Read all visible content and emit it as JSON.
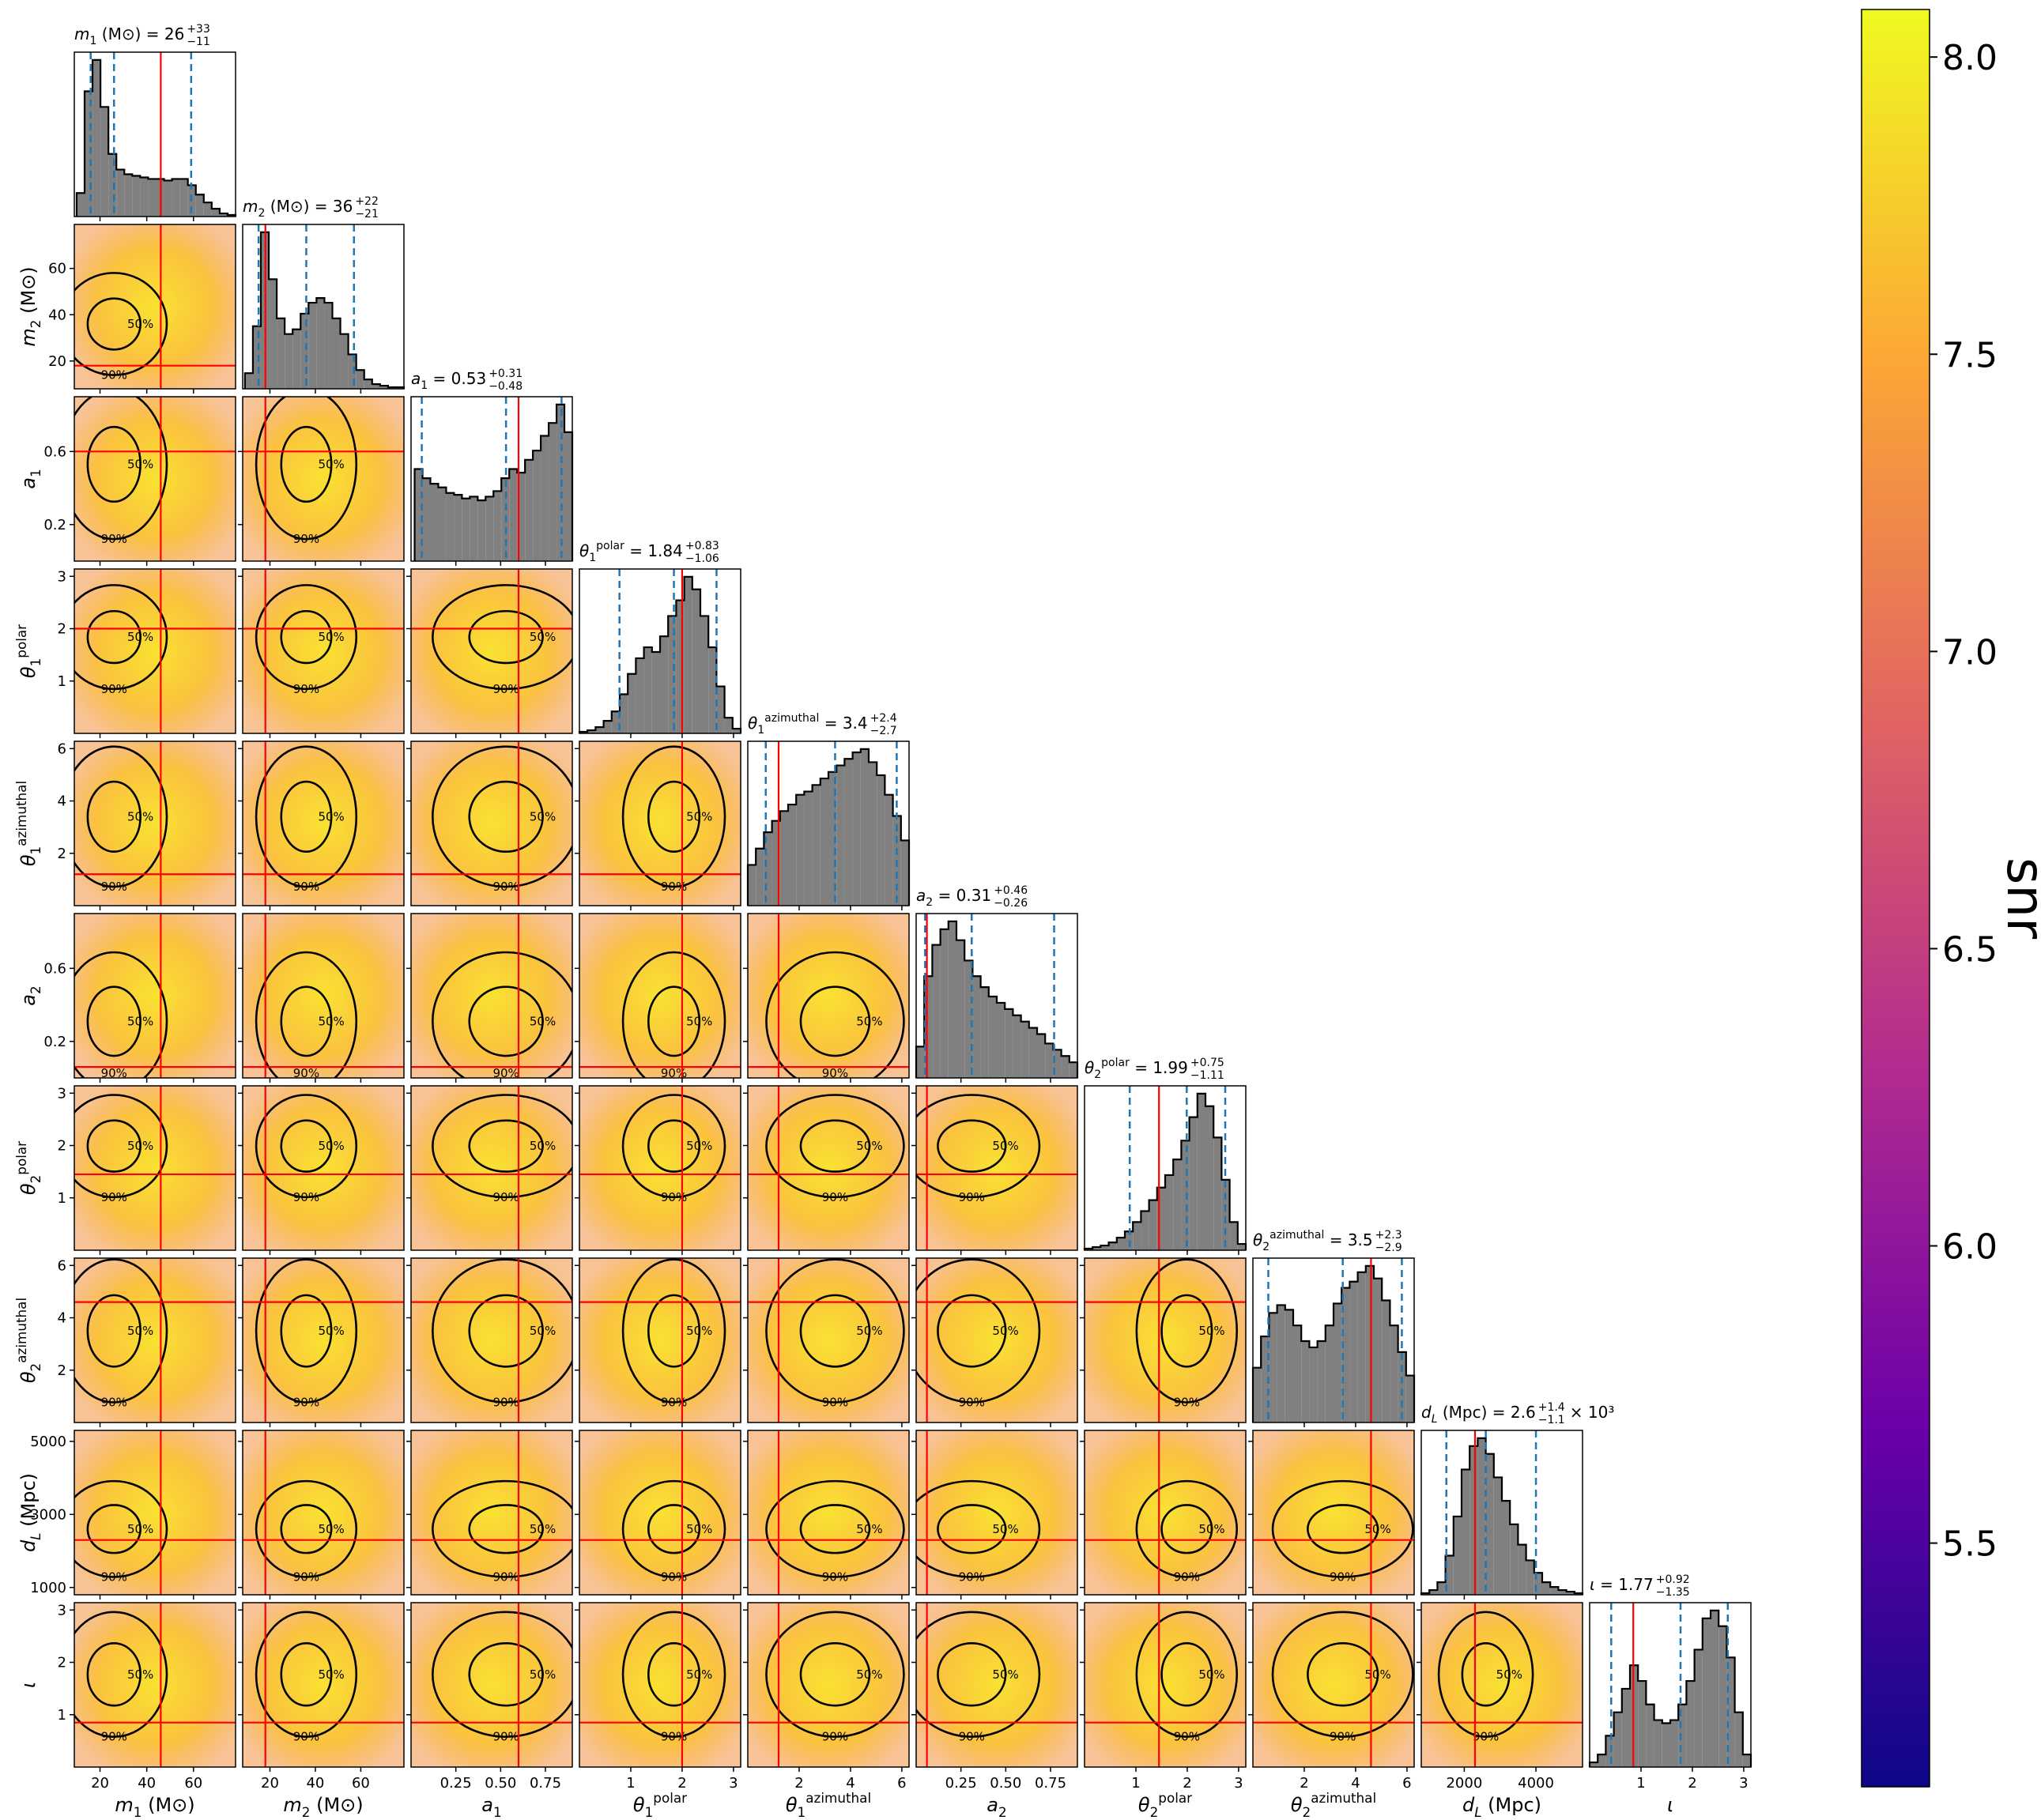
{
  "chart_data": {
    "type": "corner",
    "colors": {
      "hist": "#808080",
      "truth": "#ff0000",
      "quantile": "#1f77b4",
      "contour": "#000000"
    },
    "contour_levels": [
      "50%",
      "90%"
    ],
    "parameters": [
      {
        "label": {
          "symbol": "m",
          "sub": "1",
          "suffix": " (M⊙)"
        },
        "title": {
          "text": " = 26",
          "plus": "+33",
          "minus": "−11"
        },
        "xlim": [
          9,
          78
        ],
        "xticks": [
          20,
          40,
          60
        ],
        "yticks": [
          20,
          40,
          60
        ],
        "truth": 46,
        "quantiles": [
          16,
          26,
          59
        ],
        "bins": [
          10,
          13.4,
          16.8,
          20.2,
          23.6,
          27,
          30.4,
          33.8,
          37.2,
          40.6,
          44,
          47.4,
          50.8,
          54.2,
          57.6,
          61,
          64.4,
          67.8,
          71.2,
          74.6,
          78
        ],
        "counts": [
          15,
          80,
          100,
          70,
          40,
          30,
          27,
          26,
          25,
          24,
          24,
          23,
          24,
          24,
          20,
          14,
          9,
          5,
          2,
          1
        ]
      },
      {
        "label": {
          "symbol": "m",
          "sub": "2",
          "suffix": " (M⊙)"
        },
        "title": {
          "text": " = 36",
          "plus": "+22",
          "minus": "−21"
        },
        "xlim": [
          8,
          79
        ],
        "xticks": [
          20,
          40,
          60
        ],
        "yticks": [
          20,
          40,
          60
        ],
        "truth": 18,
        "quantiles": [
          15,
          36,
          57
        ],
        "bins": [
          9,
          12.5,
          16,
          19.5,
          23,
          26.5,
          30,
          33.5,
          37,
          40.5,
          44,
          47.5,
          51,
          54.5,
          58,
          61.5,
          65,
          68.5,
          72,
          75.5,
          79
        ],
        "counts": [
          10,
          40,
          100,
          70,
          45,
          35,
          38,
          48,
          55,
          58,
          55,
          45,
          35,
          22,
          12,
          6,
          3,
          2,
          1,
          1
        ]
      },
      {
        "label": {
          "symbol": "a",
          "sub": "1"
        },
        "title": {
          "text": " = 0.53",
          "plus": "+0.31",
          "minus": "−0.48"
        },
        "xlim": [
          0,
          0.9
        ],
        "xticks": [
          0.25,
          {
            "value": 0.5,
            "label": "0.50"
          },
          0.75
        ],
        "yticks": [
          0.2,
          0.6
        ],
        "truth": 0.6,
        "quantiles": [
          0.06,
          0.53,
          0.84
        ],
        "bins": [
          0.02,
          0.064,
          0.108,
          0.152,
          0.196,
          0.24,
          0.284,
          0.328,
          0.372,
          0.416,
          0.46,
          0.504,
          0.548,
          0.592,
          0.636,
          0.68,
          0.724,
          0.768,
          0.812,
          0.856,
          0.9
        ],
        "counts": [
          50,
          45,
          42,
          40,
          37,
          36,
          34,
          35,
          33,
          35,
          38,
          45,
          50,
          48,
          55,
          60,
          68,
          75,
          85,
          70
        ]
      },
      {
        "label": {
          "symbol": "θ",
          "sub": "1",
          "sup": "polar"
        },
        "title": {
          "text": " = 1.84",
          "plus": "+0.83",
          "minus": "−1.06"
        },
        "xlim": [
          0,
          3.14
        ],
        "xticks": [
          1,
          2,
          3
        ],
        "yticks": [
          1,
          2,
          3
        ],
        "truth": 2.0,
        "quantiles": [
          0.78,
          1.84,
          2.67
        ],
        "bins": [
          0,
          0.157,
          0.314,
          0.471,
          0.628,
          0.785,
          0.942,
          1.099,
          1.256,
          1.413,
          1.57,
          1.727,
          1.884,
          2.041,
          2.198,
          2.355,
          2.512,
          2.669,
          2.826,
          2.983,
          3.14
        ],
        "counts": [
          1,
          2,
          4,
          8,
          14,
          25,
          38,
          48,
          55,
          52,
          62,
          75,
          85,
          100,
          92,
          75,
          55,
          30,
          10,
          3
        ]
      },
      {
        "label": {
          "symbol": "θ",
          "sub": "1",
          "sup": "azimuthal"
        },
        "title": {
          "text": " = 3.4",
          "plus": "+2.4",
          "minus": "−2.7"
        },
        "xlim": [
          0,
          6.28
        ],
        "xticks": [
          2,
          4,
          6
        ],
        "yticks": [
          2,
          4,
          6
        ],
        "truth": 1.2,
        "quantiles": [
          0.7,
          3.4,
          5.8
        ],
        "bins": [
          0,
          0.314,
          0.628,
          0.942,
          1.256,
          1.57,
          1.884,
          2.198,
          2.512,
          2.826,
          3.14,
          3.454,
          3.768,
          4.082,
          4.396,
          4.71,
          5.024,
          5.338,
          5.652,
          5.966,
          6.28
        ],
        "counts": [
          25,
          35,
          45,
          52,
          58,
          62,
          68,
          70,
          74,
          78,
          82,
          86,
          90,
          94,
          96,
          88,
          80,
          68,
          55,
          40
        ]
      },
      {
        "label": {
          "symbol": "a",
          "sub": "2"
        },
        "title": {
          "text": " = 0.31",
          "plus": "+0.46",
          "minus": "−0.26"
        },
        "xlim": [
          0,
          0.9
        ],
        "xticks": [
          0.25,
          {
            "value": 0.5,
            "label": "0.50"
          },
          0.75
        ],
        "yticks": [
          0.2,
          0.6
        ],
        "truth": 0.06,
        "quantiles": [
          0.05,
          0.31,
          0.77
        ],
        "bins": [
          0,
          0.045,
          0.09,
          0.135,
          0.18,
          0.225,
          0.27,
          0.315,
          0.36,
          0.405,
          0.45,
          0.495,
          0.54,
          0.585,
          0.63,
          0.675,
          0.72,
          0.765,
          0.81,
          0.855,
          0.9
        ],
        "counts": [
          20,
          65,
          85,
          95,
          100,
          88,
          75,
          65,
          58,
          52,
          48,
          44,
          40,
          36,
          32,
          28,
          22,
          18,
          14,
          10
        ]
      },
      {
        "label": {
          "symbol": "θ",
          "sub": "2",
          "sup": "polar"
        },
        "title": {
          "text": " = 1.99",
          "plus": "+0.75",
          "minus": "−1.11"
        },
        "xlim": [
          0,
          3.14
        ],
        "xticks": [
          1,
          2,
          3
        ],
        "yticks": [
          1,
          2,
          3
        ],
        "truth": 1.45,
        "quantiles": [
          0.88,
          1.99,
          2.74
        ],
        "bins": [
          0,
          0.157,
          0.314,
          0.471,
          0.628,
          0.785,
          0.942,
          1.099,
          1.256,
          1.413,
          1.57,
          1.727,
          1.884,
          2.041,
          2.198,
          2.355,
          2.512,
          2.669,
          2.826,
          2.983,
          3.14
        ],
        "counts": [
          1,
          2,
          3,
          5,
          8,
          12,
          18,
          25,
          32,
          40,
          48,
          58,
          70,
          85,
          100,
          92,
          72,
          45,
          18,
          4
        ]
      },
      {
        "label": {
          "symbol": "θ",
          "sub": "2",
          "sup": "azimuthal"
        },
        "title": {
          "text": " = 3.5",
          "plus": "+2.3",
          "minus": "−2.9"
        },
        "xlim": [
          0,
          6.28
        ],
        "xticks": [
          2,
          4,
          6
        ],
        "yticks": [
          2,
          4,
          6
        ],
        "truth": 4.6,
        "quantiles": [
          0.6,
          3.5,
          5.8
        ],
        "bins": [
          0,
          0.314,
          0.628,
          0.942,
          1.256,
          1.57,
          1.884,
          2.198,
          2.512,
          2.826,
          3.14,
          3.454,
          3.768,
          4.082,
          4.396,
          4.71,
          5.024,
          5.338,
          5.652,
          5.966,
          6.28
        ],
        "counts": [
          35,
          55,
          70,
          75,
          72,
          62,
          52,
          48,
          52,
          62,
          76,
          86,
          90,
          96,
          100,
          92,
          78,
          62,
          45,
          30
        ]
      },
      {
        "label": {
          "symbol": "d",
          "sub": "L",
          "suffix": " (Mpc)"
        },
        "title": {
          "text": " = 2.6",
          "plus": "+1.4",
          "minus": "−1.1",
          "tail": "× 10³"
        },
        "xlim": [
          800,
          5300
        ],
        "xticks": [
          2000,
          4000
        ],
        "yticks": [
          1000,
          3000,
          5000
        ],
        "truth": 2300,
        "quantiles": [
          1500,
          2600,
          4000
        ],
        "bins": [
          800,
          1025,
          1250,
          1475,
          1700,
          1925,
          2150,
          2375,
          2600,
          2825,
          3050,
          3275,
          3500,
          3725,
          3950,
          4175,
          4400,
          4625,
          4850,
          5075,
          5300
        ],
        "counts": [
          1,
          3,
          8,
          25,
          50,
          80,
          95,
          100,
          90,
          75,
          60,
          45,
          32,
          22,
          14,
          8,
          5,
          3,
          2,
          1
        ]
      },
      {
        "label": {
          "symbol": "ι"
        },
        "title": {
          "text": " = 1.77",
          "plus": "+0.92",
          "minus": "−1.35"
        },
        "xlim": [
          0,
          3.14
        ],
        "xticks": [
          1,
          2,
          3
        ],
        "yticks": [
          1,
          2,
          3
        ],
        "truth": 0.85,
        "quantiles": [
          0.42,
          1.77,
          2.69
        ],
        "bins": [
          0,
          0.157,
          0.314,
          0.471,
          0.628,
          0.785,
          0.942,
          1.099,
          1.256,
          1.413,
          1.57,
          1.727,
          1.884,
          2.041,
          2.198,
          2.355,
          2.512,
          2.669,
          2.826,
          2.983,
          3.14
        ],
        "counts": [
          3,
          8,
          20,
          35,
          50,
          65,
          55,
          40,
          30,
          28,
          30,
          40,
          55,
          75,
          95,
          100,
          90,
          70,
          35,
          8
        ]
      }
    ],
    "colorbar": {
      "label": "snr",
      "ylim": [
        5.09,
        8.08
      ],
      "yticks": [
        5.5,
        {
          "value": 6,
          "label": "6.0"
        },
        6.5,
        {
          "value": 7,
          "label": "7.0"
        },
        7.5,
        {
          "value": 8,
          "label": "8.0"
        }
      ],
      "colors": [
        "#0d0887",
        "#6a00a8",
        "#b12a90",
        "#e16462",
        "#fca636",
        "#f0f921"
      ]
    }
  }
}
